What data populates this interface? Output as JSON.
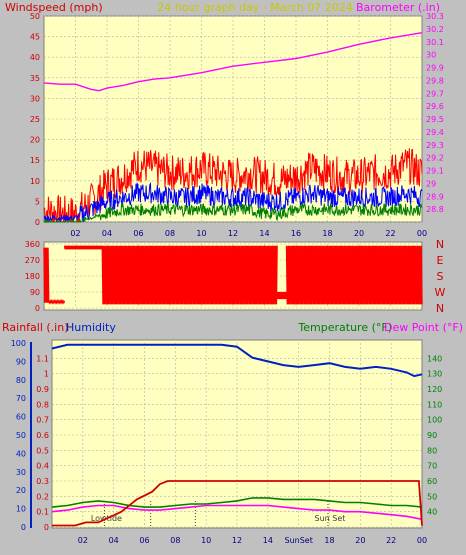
{
  "header": {
    "left_label": "Windspeed (mph)",
    "center_label": "24 hour graph day - March 07 2024",
    "right_label": "Barometer (.in)"
  },
  "colors": {
    "panel_bg": "#ffffc0",
    "frame_bg": "#c0c0c0",
    "grid": "#b0b0b0",
    "wind_gust": "#ff0000",
    "wind_avg": "#0000ff",
    "wind_low": "#008000",
    "barometer": "#ff00ff",
    "direction": "#ff0000",
    "rainfall": "#d00000",
    "humidity": "#0020c0",
    "temperature": "#008000",
    "dewpoint": "#ff00ff",
    "header_text": "#c8c800"
  },
  "x_ticks": [
    "02",
    "04",
    "06",
    "08",
    "10",
    "12",
    "14",
    "16",
    "18",
    "20",
    "22",
    "00"
  ],
  "chart_data": [
    {
      "type": "line",
      "name": "wind-barometer",
      "x_range": [
        0,
        24
      ],
      "y_left": {
        "label": "Windspeed (mph)",
        "range": [
          0,
          50
        ],
        "ticks": [
          "0",
          "5",
          "10",
          "15",
          "20",
          "25",
          "30",
          "35",
          "40",
          "45",
          "50"
        ]
      },
      "y_right": {
        "label": "Barometer (.in)",
        "range": [
          28.7,
          30.3
        ],
        "ticks": [
          "28.8",
          "28.9",
          "29",
          "29.1",
          "29.2",
          "29.3",
          "29.4",
          "29.5",
          "29.6",
          "29.7",
          "29.8",
          "29.9",
          "30",
          "30.1",
          "30.2",
          "30.3"
        ]
      },
      "barometer": {
        "x": [
          0,
          1,
          2,
          3,
          3.5,
          4,
          5,
          6,
          7,
          8,
          10,
          12,
          14,
          16,
          18,
          20,
          22,
          24
        ],
        "y": [
          29.78,
          29.77,
          29.77,
          29.73,
          29.72,
          29.74,
          29.76,
          29.79,
          29.81,
          29.82,
          29.86,
          29.91,
          29.94,
          29.97,
          30.02,
          30.08,
          30.13,
          30.17
        ]
      },
      "wind_envelope": {
        "x": [
          0,
          1,
          2,
          3,
          4,
          5,
          6,
          7,
          8,
          9,
          10,
          11,
          12,
          13,
          14,
          15,
          16,
          17,
          18,
          19,
          20,
          21,
          22,
          23,
          24
        ],
        "gust": [
          3,
          2,
          2,
          5,
          9,
          11,
          14,
          13,
          12,
          12,
          13,
          12,
          11,
          12,
          11,
          10,
          11,
          13,
          12,
          11,
          11,
          12,
          12,
          14,
          12
        ],
        "avg": [
          1,
          1,
          1,
          3,
          5,
          6,
          7,
          7,
          6,
          6,
          7,
          6,
          6,
          6,
          5,
          5,
          6,
          7,
          6,
          6,
          6,
          6,
          6,
          7,
          6
        ],
        "low": [
          0,
          0,
          0,
          1,
          2,
          3,
          3,
          3,
          3,
          3,
          3,
          3,
          3,
          3,
          2,
          2,
          3,
          3,
          3,
          3,
          3,
          3,
          3,
          3,
          3
        ]
      }
    },
    {
      "type": "scatter",
      "name": "wind-direction",
      "x_range": [
        0,
        24
      ],
      "y_left": {
        "range": [
          0,
          360
        ],
        "ticks": [
          "0",
          "90",
          "180",
          "270",
          "360"
        ]
      },
      "y_right": {
        "ticks": [
          "N",
          "W",
          "S",
          "E",
          "N"
        ]
      },
      "segments": [
        {
          "x0": 0.0,
          "x1": 0.3,
          "low": 30,
          "high": 340
        },
        {
          "x0": 0.3,
          "x1": 1.3,
          "low": 30,
          "high": 40
        },
        {
          "x0": 1.3,
          "x1": 3.7,
          "low": 330,
          "high": 350
        },
        {
          "x0": 3.7,
          "x1": 14.8,
          "low": 20,
          "high": 350
        },
        {
          "x0": 14.8,
          "x1": 15.4,
          "low": 50,
          "high": 90
        },
        {
          "x0": 15.4,
          "x1": 24.0,
          "low": 20,
          "high": 350
        }
      ]
    },
    {
      "type": "line",
      "name": "rain-humidity-temperature",
      "x_range": [
        0,
        24
      ],
      "labels": {
        "rainfall": "Rainfall (.in)",
        "humidity": "Humidity",
        "temperature": "Temperature (°F)",
        "dewpoint": "Dew Point (°F)"
      },
      "y_rain": {
        "range": [
          0,
          1.2
        ],
        "ticks": [
          "0",
          "0.1",
          "0.2",
          "0.3",
          "0.4",
          "0.5",
          "0.6",
          "0.7",
          "0.8",
          "0.9",
          "1",
          "1.1"
        ]
      },
      "y_humidity": {
        "range": [
          0,
          100
        ],
        "ticks": [
          "0",
          "10",
          "20",
          "30",
          "40",
          "50",
          "60",
          "70",
          "80",
          "90",
          "100"
        ]
      },
      "y_temp": {
        "range": [
          30,
          150
        ],
        "ticks": [
          "40",
          "50",
          "60",
          "70",
          "80",
          "90",
          "100",
          "110",
          "120",
          "130",
          "140"
        ]
      },
      "rainfall": {
        "x": [
          0,
          1.5,
          2.2,
          3,
          4.5,
          5.5,
          6.5,
          7,
          7.5,
          23.8,
          24
        ],
        "y": [
          0.01,
          0.01,
          0.03,
          0.03,
          0.1,
          0.18,
          0.23,
          0.28,
          0.3,
          0.3,
          0.01
        ]
      },
      "humidity": {
        "x": [
          0,
          1,
          3,
          5,
          7,
          9,
          11,
          12,
          12.5,
          13,
          14,
          15,
          16,
          17,
          18,
          19,
          20,
          21,
          22,
          23,
          23.5,
          24
        ],
        "y": [
          97,
          99,
          99,
          99,
          99,
          99,
          99,
          98,
          95,
          92,
          90,
          88,
          87,
          88,
          89,
          87,
          86,
          87,
          86,
          84,
          82,
          83
        ]
      },
      "temperature": {
        "x": [
          0,
          1,
          2,
          3,
          4,
          5,
          6,
          7,
          8,
          9,
          10,
          11,
          12,
          13,
          14,
          15,
          16,
          17,
          18,
          19,
          20,
          21,
          22,
          23,
          24
        ],
        "y": [
          43,
          44,
          46,
          47,
          46,
          44,
          43,
          43,
          44,
          45,
          45,
          46,
          47,
          49,
          49,
          48,
          48,
          48,
          47,
          46,
          46,
          45,
          44,
          44,
          43
        ]
      },
      "dewpoint": {
        "x": [
          0,
          1,
          2,
          3,
          4,
          5,
          6,
          7,
          8,
          9,
          10,
          11,
          12,
          13,
          14,
          15,
          16,
          17,
          18,
          19,
          20,
          21,
          22,
          23,
          24
        ],
        "y": [
          40,
          41,
          43,
          44,
          44,
          42,
          41,
          41,
          42,
          43,
          44,
          44,
          44,
          44,
          44,
          43,
          42,
          41,
          41,
          40,
          40,
          39,
          38,
          37,
          35
        ]
      },
      "markers": [
        {
          "label": "Lowtide",
          "x": 3.4
        },
        {
          "label": "",
          "x": 6.4
        },
        {
          "label": "",
          "x": 9.3
        },
        {
          "label": "Sun Set",
          "x": 17.9
        }
      ],
      "tick_override": {
        "index": 7,
        "label": "SunSet"
      }
    }
  ]
}
